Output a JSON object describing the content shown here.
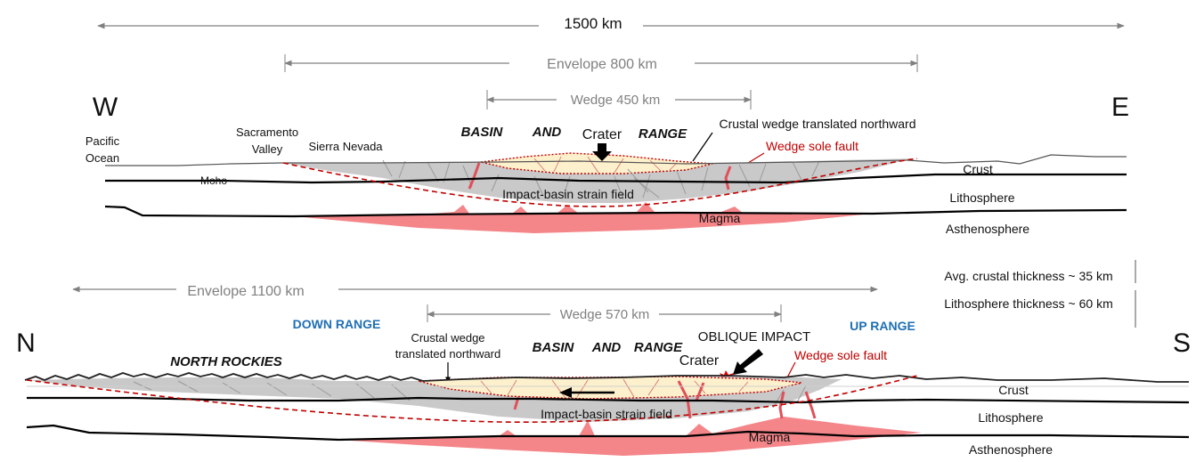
{
  "top_section": {
    "total_width": "1500 km",
    "envelope": "Envelope 800 km",
    "wedge": "Wedge 450 km",
    "west": "W",
    "east": "E",
    "pacific_line1": "Pacific",
    "pacific_line2": "Ocean",
    "sacramento_line1": "Sacramento",
    "sacramento_line2": "Valley",
    "sierra": "Sierra Nevada",
    "basin": "BASIN",
    "and": "AND",
    "range": "RANGE",
    "crater": "Crater",
    "wedge_translated": "Crustal wedge translated northward",
    "sole_fault": "Wedge sole fault",
    "moho": "Moho",
    "crust": "Crust",
    "strain_field": "Impact-basin strain field",
    "lithosphere": "Lithosphere",
    "magma": "Magma",
    "asthenosphere": "Asthenosphere"
  },
  "scale_notes": {
    "crustal": "Avg. crustal thickness ~ 35 km",
    "lithosphere": "Lithosphere thickness ~ 60 km"
  },
  "bottom_section": {
    "envelope": "Envelope 1100 km",
    "wedge": "Wedge 570 km",
    "down_range": "DOWN RANGE",
    "up_range": "UP RANGE",
    "north": "N",
    "south": "S",
    "north_rockies": "NORTH ROCKIES",
    "wedge_translated_line1": "Crustal wedge",
    "wedge_translated_line2": "translated northward",
    "basin": "BASIN",
    "and": "AND",
    "range": "RANGE",
    "oblique": "OBLIQUE IMPACT",
    "crater": "Crater",
    "sole_fault": "Wedge sole fault",
    "crust": "Crust",
    "strain_field": "Impact-basin strain field",
    "lithosphere": "Lithosphere",
    "magma": "Magma",
    "asthenosphere": "Asthenosphere"
  },
  "colors": {
    "crust_gray": "#c9c9c9",
    "wedge_fill": "#fdf0cc",
    "magma": "#f4868a",
    "fault_red": "#c00000",
    "label_blue": "#1f6fb4"
  }
}
